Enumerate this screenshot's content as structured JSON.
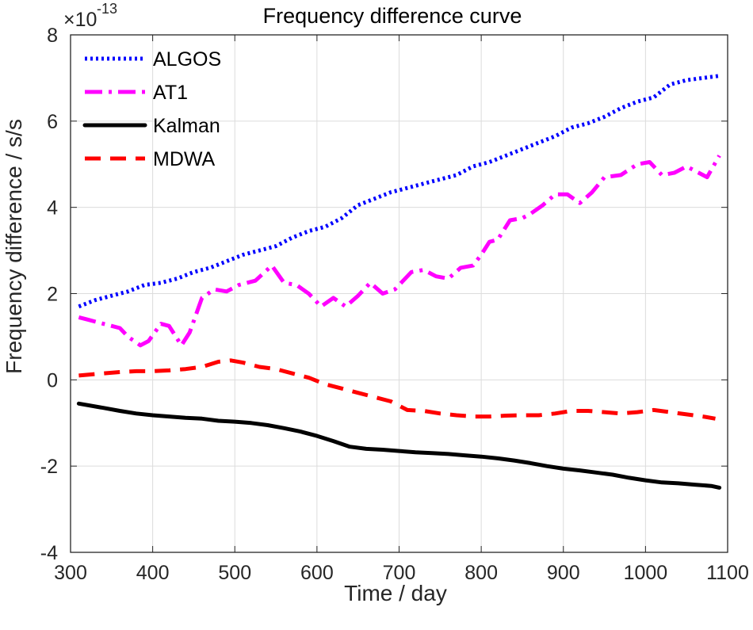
{
  "chart_data": {
    "type": "line",
    "title": "Frequency difference curve",
    "xlabel": "Time / day",
    "ylabel": "Frequency difference / s/s",
    "exponent_base": "×10",
    "exponent_power": "-13",
    "xlim": [
      300,
      1100
    ],
    "ylim": [
      -4,
      8
    ],
    "xticks": [
      300,
      400,
      500,
      600,
      700,
      800,
      900,
      1000,
      1100
    ],
    "yticks": [
      -4,
      -2,
      0,
      2,
      4,
      6,
      8
    ],
    "xtick_labels": [
      "300",
      "400",
      "500",
      "600",
      "700",
      "800",
      "900",
      "1000",
      "1100"
    ],
    "ytick_labels": [
      "-4",
      "-2",
      "0",
      "2",
      "4",
      "6",
      "8"
    ],
    "grid": true,
    "legend_position": "top-left",
    "series": [
      {
        "name": "ALGOS",
        "color": "#0000ff",
        "style": "dotted",
        "x": [
          310,
          330,
          350,
          370,
          390,
          410,
          430,
          450,
          470,
          490,
          510,
          530,
          550,
          570,
          590,
          610,
          630,
          650,
          670,
          690,
          710,
          730,
          750,
          770,
          790,
          810,
          830,
          850,
          870,
          890,
          910,
          930,
          950,
          970,
          990,
          1010,
          1030,
          1050,
          1070,
          1090
        ],
        "values": [
          1.7,
          1.85,
          1.95,
          2.05,
          2.2,
          2.25,
          2.35,
          2.5,
          2.6,
          2.75,
          2.9,
          3.0,
          3.1,
          3.3,
          3.45,
          3.55,
          3.75,
          4.05,
          4.2,
          4.35,
          4.45,
          4.55,
          4.65,
          4.75,
          4.95,
          5.05,
          5.2,
          5.35,
          5.5,
          5.65,
          5.85,
          5.95,
          6.1,
          6.3,
          6.45,
          6.55,
          6.85,
          6.95,
          7.0,
          7.05
        ]
      },
      {
        "name": "AT1",
        "color": "#ff00ff",
        "style": "dash-dot",
        "x": [
          310,
          320,
          340,
          360,
          370,
          385,
          395,
          410,
          420,
          435,
          445,
          460,
          475,
          490,
          505,
          525,
          545,
          560,
          575,
          590,
          605,
          620,
          635,
          650,
          665,
          680,
          695,
          715,
          730,
          745,
          760,
          775,
          790,
          800,
          810,
          820,
          835,
          850,
          860,
          875,
          890,
          905,
          920,
          935,
          950,
          970,
          990,
          1005,
          1020,
          1035,
          1050,
          1060,
          1075,
          1090
        ],
        "values": [
          1.45,
          1.4,
          1.3,
          1.2,
          1.0,
          0.8,
          0.9,
          1.3,
          1.25,
          0.8,
          1.1,
          1.9,
          2.1,
          2.05,
          2.2,
          2.3,
          2.65,
          2.25,
          2.2,
          2.0,
          1.7,
          1.9,
          1.7,
          1.95,
          2.25,
          2.0,
          2.1,
          2.5,
          2.55,
          2.4,
          2.35,
          2.6,
          2.65,
          2.9,
          3.2,
          3.25,
          3.7,
          3.75,
          3.85,
          4.05,
          4.3,
          4.3,
          4.1,
          4.35,
          4.7,
          4.75,
          5.0,
          5.05,
          4.75,
          4.8,
          4.95,
          4.85,
          4.7,
          5.2
        ]
      },
      {
        "name": "Kalman",
        "color": "#000000",
        "style": "solid",
        "x": [
          310,
          340,
          360,
          380,
          400,
          420,
          440,
          460,
          480,
          500,
          520,
          540,
          560,
          580,
          600,
          620,
          640,
          660,
          680,
          700,
          720,
          740,
          760,
          780,
          800,
          820,
          840,
          860,
          880,
          900,
          920,
          940,
          960,
          980,
          1000,
          1020,
          1040,
          1060,
          1080,
          1090
        ],
        "values": [
          -0.55,
          -0.65,
          -0.72,
          -0.78,
          -0.82,
          -0.85,
          -0.88,
          -0.9,
          -0.95,
          -0.97,
          -1.0,
          -1.05,
          -1.12,
          -1.2,
          -1.3,
          -1.42,
          -1.55,
          -1.6,
          -1.62,
          -1.65,
          -1.68,
          -1.7,
          -1.72,
          -1.75,
          -1.78,
          -1.82,
          -1.87,
          -1.93,
          -2.0,
          -2.06,
          -2.1,
          -2.15,
          -2.2,
          -2.27,
          -2.33,
          -2.38,
          -2.4,
          -2.43,
          -2.46,
          -2.5
        ]
      },
      {
        "name": "MDWA",
        "color": "#ff0000",
        "style": "dashed",
        "x": [
          310,
          340,
          360,
          380,
          400,
          420,
          440,
          460,
          480,
          495,
          510,
          530,
          550,
          570,
          590,
          610,
          630,
          650,
          670,
          690,
          700,
          710,
          730,
          750,
          770,
          790,
          810,
          830,
          850,
          870,
          890,
          910,
          930,
          950,
          970,
          990,
          1010,
          1030,
          1050,
          1070,
          1085
        ],
        "values": [
          0.1,
          0.15,
          0.18,
          0.2,
          0.2,
          0.22,
          0.25,
          0.3,
          0.42,
          0.45,
          0.4,
          0.3,
          0.25,
          0.15,
          0.05,
          -0.1,
          -0.2,
          -0.3,
          -0.4,
          -0.5,
          -0.6,
          -0.7,
          -0.72,
          -0.78,
          -0.82,
          -0.85,
          -0.85,
          -0.83,
          -0.82,
          -0.82,
          -0.78,
          -0.72,
          -0.72,
          -0.75,
          -0.78,
          -0.75,
          -0.7,
          -0.75,
          -0.8,
          -0.85,
          -0.9
        ]
      }
    ]
  }
}
